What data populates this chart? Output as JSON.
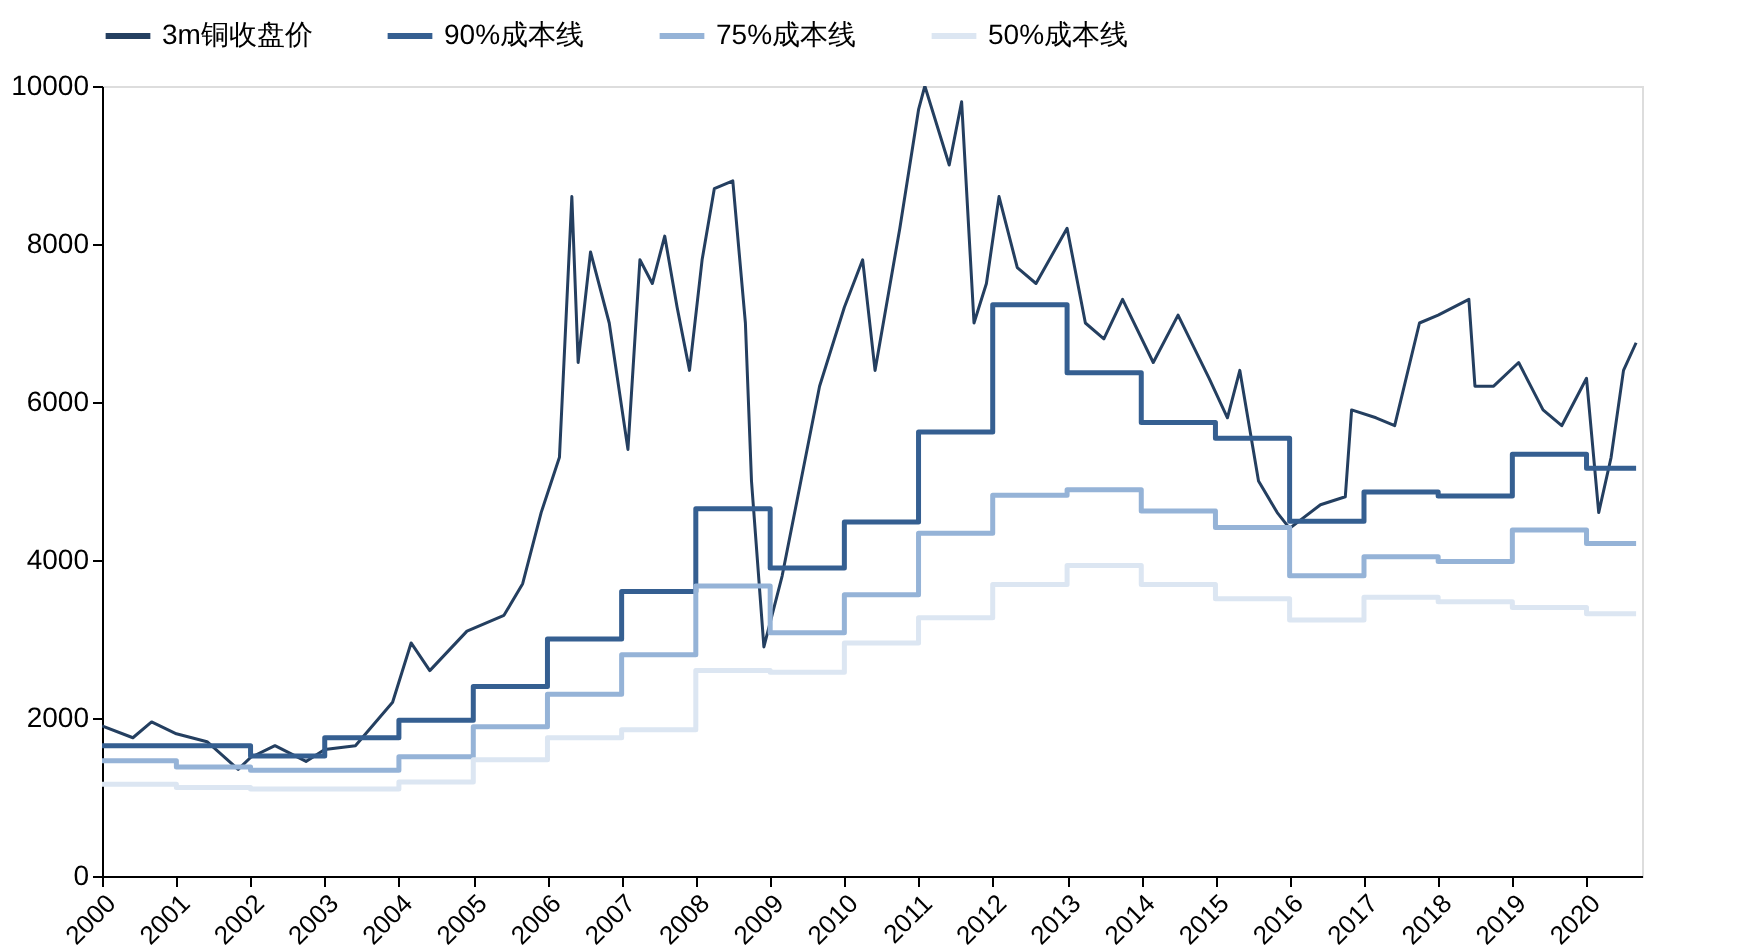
{
  "chart_data": {
    "type": "line",
    "xlim": [
      "2000-01-01",
      "2020-09-30"
    ],
    "xticks": [
      "2000",
      "2001",
      "2002",
      "2003",
      "2004",
      "2005",
      "2006",
      "2007",
      "2008",
      "2009",
      "2010",
      "2011",
      "2012",
      "2013",
      "2014",
      "2015",
      "2016",
      "2017",
      "2018",
      "2019",
      "2020"
    ],
    "ylim": [
      0,
      10000
    ],
    "yticks": [
      0,
      2000,
      4000,
      6000,
      8000,
      10000
    ],
    "grid": false,
    "legend": "top",
    "series": [
      {
        "name": "3m铜收盘价",
        "type": "line",
        "color": "#243f60",
        "x": [
          "2000-01",
          "2000-06",
          "2000-09",
          "2001-01",
          "2001-06",
          "2001-11",
          "2002-01",
          "2002-05",
          "2002-10",
          "2003-01",
          "2003-06",
          "2003-12",
          "2004-03",
          "2004-06",
          "2004-12",
          "2005-06",
          "2005-09",
          "2005-12",
          "2006-03",
          "2006-05",
          "2006-06",
          "2006-08",
          "2006-11",
          "2007-02",
          "2007-04",
          "2007-06",
          "2007-08",
          "2007-10",
          "2007-12",
          "2008-02",
          "2008-04",
          "2008-07",
          "2008-09",
          "2008-10",
          "2008-12",
          "2009-03",
          "2009-06",
          "2009-09",
          "2010-01",
          "2010-04",
          "2010-06",
          "2010-10",
          "2011-01",
          "2011-02",
          "2011-06",
          "2011-08",
          "2011-10",
          "2011-12",
          "2012-02",
          "2012-05",
          "2012-08",
          "2013-01",
          "2013-04",
          "2013-07",
          "2013-10",
          "2014-03",
          "2014-07",
          "2014-12",
          "2015-03",
          "2015-05",
          "2015-08",
          "2015-11",
          "2016-01",
          "2016-06",
          "2016-10",
          "2016-11",
          "2017-03",
          "2017-06",
          "2017-10",
          "2018-01",
          "2018-06",
          "2018-07",
          "2018-10",
          "2019-02",
          "2019-06",
          "2019-09",
          "2020-01",
          "2020-03",
          "2020-05",
          "2020-07",
          "2020-09"
        ],
        "values": [
          1900,
          1750,
          1950,
          1800,
          1700,
          1350,
          1500,
          1650,
          1450,
          1600,
          1650,
          2200,
          2950,
          2600,
          3100,
          3300,
          3700,
          4600,
          5300,
          8600,
          6500,
          7900,
          7000,
          5400,
          7800,
          7500,
          8100,
          7200,
          6400,
          7800,
          8700,
          8800,
          7000,
          5000,
          2900,
          3800,
          5000,
          6200,
          7200,
          7800,
          6400,
          8200,
          9700,
          10000,
          9000,
          9800,
          7000,
          7500,
          8600,
          7700,
          7500,
          8200,
          7000,
          6800,
          7300,
          6500,
          7100,
          6300,
          5800,
          6400,
          5000,
          4600,
          4400,
          4700,
          4800,
          5900,
          5800,
          5700,
          7000,
          7100,
          7300,
          6200,
          6200,
          6500,
          5900,
          5700,
          6300,
          4600,
          5300,
          6400,
          6750
        ]
      },
      {
        "name": "90%成本线",
        "type": "step",
        "color": "#355f91",
        "x": [
          "2000",
          "2001",
          "2002",
          "2003",
          "2004",
          "2005",
          "2006",
          "2007",
          "2008",
          "2009",
          "2010",
          "2011",
          "2012",
          "2013",
          "2014",
          "2015",
          "2016",
          "2017",
          "2018",
          "2019",
          "2020",
          "2020-09"
        ],
        "values": [
          1650,
          1650,
          1520,
          1750,
          1970,
          2400,
          3000,
          3600,
          4650,
          3900,
          4480,
          5620,
          7230,
          6370,
          5740,
          5540,
          4490,
          4860,
          4810,
          5340,
          5160,
          5160
        ]
      },
      {
        "name": "75%成本线",
        "type": "step",
        "color": "#95b3d7",
        "x": [
          "2000",
          "2001",
          "2002",
          "2003",
          "2004",
          "2005",
          "2006",
          "2007",
          "2008",
          "2009",
          "2010",
          "2011",
          "2012",
          "2013",
          "2014",
          "2015",
          "2016",
          "2017",
          "2018",
          "2019",
          "2020",
          "2020-09"
        ],
        "values": [
          1460,
          1380,
          1340,
          1340,
          1510,
          1890,
          2300,
          2800,
          3670,
          3080,
          3560,
          4340,
          4820,
          4890,
          4620,
          4410,
          3800,
          4040,
          3980,
          4380,
          4210,
          4210
        ]
      },
      {
        "name": "50%成本线",
        "type": "step",
        "color": "#dce6f2",
        "x": [
          "2000",
          "2001",
          "2002",
          "2003",
          "2004",
          "2005",
          "2006",
          "2007",
          "2008",
          "2009",
          "2010",
          "2011",
          "2012",
          "2013",
          "2014",
          "2015",
          "2016",
          "2017",
          "2018",
          "2019",
          "2020",
          "2020-09"
        ],
        "values": [
          1160,
          1120,
          1100,
          1100,
          1190,
          1470,
          1750,
          1850,
          2600,
          2580,
          2950,
          3270,
          3690,
          3930,
          3690,
          3510,
          3240,
          3530,
          3470,
          3400,
          3320,
          3320
        ]
      }
    ]
  }
}
